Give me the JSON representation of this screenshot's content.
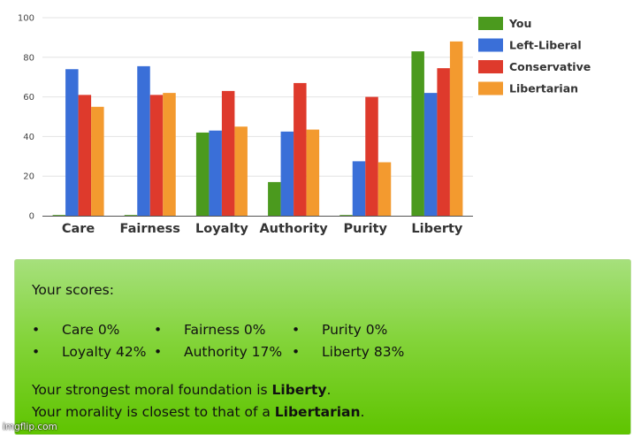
{
  "chart_data": {
    "type": "bar",
    "categories": [
      "Care",
      "Fairness",
      "Loyalty",
      "Authority",
      "Purity",
      "Liberty"
    ],
    "series": [
      {
        "name": "You",
        "color": "#4b9a1e",
        "values": [
          0,
          0,
          42,
          17,
          0,
          83
        ]
      },
      {
        "name": "Left-Liberal",
        "color": "#3a6fd8",
        "values": [
          74,
          75.5,
          43,
          42.5,
          27.5,
          62
        ]
      },
      {
        "name": "Conservative",
        "color": "#de3a2c",
        "values": [
          61,
          61,
          63,
          67,
          60,
          74.5
        ]
      },
      {
        "name": "Libertarian",
        "color": "#f39a2f",
        "values": [
          55,
          62,
          45,
          43.5,
          27,
          88
        ]
      }
    ],
    "ylim": [
      0,
      100
    ],
    "yticks": [
      0,
      20,
      40,
      60,
      80,
      100
    ],
    "ytick_labels": [
      "0",
      "20",
      "40",
      "60",
      "80",
      "100"
    ],
    "grid": true,
    "legend_position": "right"
  },
  "scores": {
    "title": "Your scores:",
    "bullet": "•",
    "items": [
      {
        "label": "Care 0%"
      },
      {
        "label": "Fairness 0%"
      },
      {
        "label": "Purity 0%"
      },
      {
        "label": "Loyalty 42%"
      },
      {
        "label": "Authority 17%"
      },
      {
        "label": "Liberty 83%"
      }
    ],
    "strongest_prefix": "Your strongest moral foundation is ",
    "strongest_value": "Liberty",
    "strongest_suffix": ".",
    "closest_prefix": "Your morality is closest to that of a ",
    "closest_value": "Libertarian",
    "closest_suffix": "."
  },
  "watermark": "imgflip.com"
}
